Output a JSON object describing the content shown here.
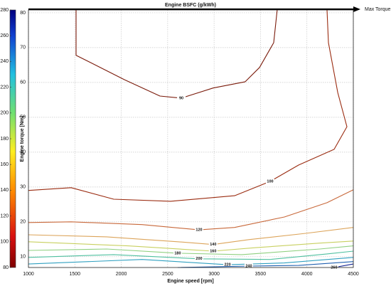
{
  "chart_data": {
    "type": "contour",
    "title": "Engine BSFC (g/kWh)",
    "xlabel": "Engine speed [rpm]",
    "ylabel": "Engine torque [Nm]",
    "annotation": "Max Torque",
    "xlim": [
      1000,
      4500
    ],
    "xticks": [
      1000,
      1500,
      2000,
      2500,
      3000,
      3500,
      4000,
      4500
    ],
    "ylim": [
      6.9,
      80.8
    ],
    "yticks": [
      10,
      20,
      30,
      40,
      50,
      60,
      70,
      80
    ],
    "clim": [
      80,
      280
    ],
    "cticks": [
      80,
      100,
      120,
      140,
      160,
      180,
      200,
      220,
      240,
      260,
      280
    ],
    "grid": true,
    "contours": [
      {
        "level": 90,
        "color": "#7a1a0a",
        "x": [
          1513,
          1513,
          2034,
          2417,
          2647,
          2990,
          3335,
          3490,
          3642,
          3680
        ],
        "y": [
          80.8,
          67.8,
          60.8,
          56.1,
          55.5,
          58.4,
          60.2,
          64.3,
          71.4,
          80.8
        ]
      },
      {
        "level": 100,
        "color": "#9a2b10",
        "x": [
          1000,
          1460,
          1919,
          2532,
          3221,
          3604,
          3910,
          4293,
          4431,
          4332,
          4232,
          4217
        ],
        "y": [
          29.0,
          29.8,
          26.5,
          25.9,
          27.5,
          31.6,
          36.3,
          40.8,
          47.3,
          57.1,
          71.4,
          80.8
        ]
      },
      {
        "level": 120,
        "color": "#c8683a",
        "x": [
          1000,
          1460,
          2225,
          2838,
          3221,
          3757,
          4217,
          4500
        ],
        "y": [
          19.8,
          20.0,
          19.2,
          17.7,
          18.4,
          21.4,
          25.5,
          29.2
        ]
      },
      {
        "level": 140,
        "color": "#dca45a",
        "x": [
          1000,
          1843,
          2608,
          2990,
          3374,
          3987,
          4500
        ],
        "y": [
          16.3,
          15.7,
          14.3,
          13.5,
          14.9,
          16.7,
          18.4
        ]
      },
      {
        "level": 160,
        "color": "#c8d060",
        "x": [
          1000,
          2072,
          2990,
          3451,
          4140,
          4500
        ],
        "y": [
          14.3,
          13.1,
          11.6,
          12.6,
          13.9,
          14.5
        ]
      },
      {
        "level": 180,
        "color": "#90d080",
        "x": [
          1000,
          1843,
          2608,
          3298,
          4140,
          4500
        ],
        "y": [
          11.8,
          12.2,
          11.0,
          10.6,
          12.2,
          13.1
        ]
      },
      {
        "level": 200,
        "color": "#50c0a0",
        "x": [
          1000,
          1919,
          2838,
          3604,
          4217,
          4500
        ],
        "y": [
          9.8,
          10.6,
          9.4,
          9.2,
          10.8,
          11.6
        ]
      },
      {
        "level": 220,
        "color": "#30a0c0",
        "x": [
          1000,
          2225,
          3145,
          3757,
          4500
        ],
        "y": [
          7.9,
          9.2,
          7.7,
          8.2,
          9.8
        ]
      },
      {
        "level": 240,
        "color": "#2060b0",
        "x": [
          2608,
          3374,
          3910,
          4500
        ],
        "y": [
          6.9,
          7.3,
          7.5,
          8.6
        ]
      },
      {
        "level": 260,
        "color": "#102090",
        "x": [
          4293,
          4500
        ],
        "y": [
          6.9,
          7.9
        ]
      }
    ]
  }
}
